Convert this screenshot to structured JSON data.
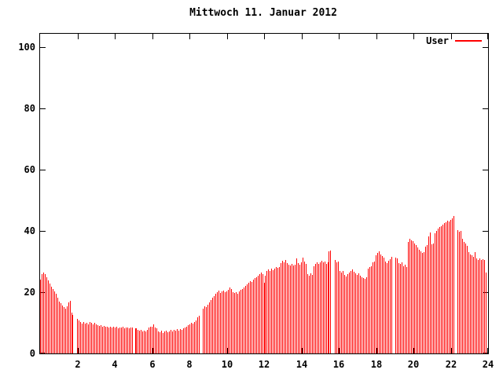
{
  "title": "Mittwoch 11. Januar 2012",
  "legend": {
    "label": "User",
    "color": "#ff0000"
  },
  "colors": {
    "background": "#ffffff",
    "bars": "#ff0000",
    "axis": "#000000",
    "text": "#000000"
  },
  "chart_data": {
    "type": "bar",
    "title": "Mittwoch 11. Januar 2012",
    "series_name": "User",
    "x_unit": "hour of day",
    "x_range": [
      0,
      24
    ],
    "y_range": [
      0,
      104.3
    ],
    "x_ticks": [
      2,
      4,
      6,
      8,
      10,
      12,
      14,
      16,
      18,
      20,
      22,
      24
    ],
    "y_ticks": [
      0,
      20,
      40,
      60,
      80,
      100
    ],
    "grid": false,
    "legend_position": "top-right-inside",
    "bar_style": "impulses",
    "sample_interval_minutes": 5,
    "gaps_note": "zero values = missing samples (white gaps)",
    "values": [
      24.0,
      25.8,
      26.4,
      25.9,
      24.9,
      23.8,
      22.8,
      21.9,
      21.1,
      20.3,
      19.4,
      18.3,
      17.0,
      16.3,
      15.6,
      15.0,
      14.6,
      15.4,
      16.6,
      17.1,
      13.2,
      12.6,
      0,
      0,
      11.2,
      10.7,
      10.3,
      9.8,
      10.2,
      9.7,
      10.0,
      9.6,
      10.3,
      10.0,
      9.6,
      9.9,
      9.5,
      9.2,
      8.9,
      9.1,
      8.7,
      8.9,
      8.6,
      8.8,
      8.5,
      8.7,
      8.5,
      8.6,
      8.4,
      8.6,
      8.3,
      8.5,
      8.4,
      8.6,
      8.3,
      8.5,
      8.4,
      8.3,
      8.5,
      8.4,
      0,
      8.3,
      8.1,
      7.7,
      7.4,
      7.6,
      7.2,
      7.5,
      7.3,
      7.8,
      8.4,
      8.7,
      8.8,
      9.4,
      8.5,
      8.1,
      7.2,
      6.9,
      7.4,
      6.6,
      7.1,
      7.5,
      6.8,
      7.3,
      7.6,
      7.2,
      7.7,
      7.4,
      7.9,
      7.5,
      8.0,
      7.7,
      8.2,
      8.5,
      8.8,
      9.2,
      9.6,
      10.0,
      9.7,
      10.2,
      10.7,
      11.9,
      12.3,
      0,
      0,
      14.7,
      15.4,
      15.1,
      15.9,
      16.6,
      17.4,
      18.1,
      18.7,
      19.4,
      19.9,
      20.4,
      19.7,
      20.2,
      20.6,
      20.0,
      20.3,
      20.7,
      21.4,
      21.0,
      20.1,
      19.7,
      20.0,
      19.6,
      20.2,
      20.7,
      21.1,
      21.5,
      22.0,
      22.5,
      23.1,
      23.6,
      23.4,
      24.0,
      24.5,
      24.9,
      25.4,
      25.9,
      26.3,
      26.0,
      23.0,
      25.4,
      26.8,
      27.3,
      26.9,
      27.6,
      27.2,
      27.8,
      28.2,
      27.9,
      28.3,
      29.5,
      30.3,
      29.8,
      30.4,
      29.5,
      29.0,
      28.7,
      29.2,
      28.8,
      29.0,
      31.0,
      29.4,
      28.9,
      29.6,
      31.3,
      29.9,
      29.1,
      25.9,
      25.4,
      26.1,
      25.6,
      28.5,
      29.2,
      29.7,
      29.3,
      29.8,
      30.3,
      29.6,
      30.0,
      29.2,
      29.6,
      33.2,
      33.6,
      0,
      0,
      30.4,
      29.8,
      30.1,
      27.0,
      26.3,
      26.8,
      25.7,
      25.2,
      25.8,
      26.4,
      26.9,
      27.4,
      26.6,
      26.1,
      25.6,
      26.2,
      25.3,
      24.9,
      24.6,
      24.3,
      24.8,
      27.7,
      28.2,
      28.4,
      29.6,
      30.0,
      32.1,
      32.9,
      33.2,
      32.4,
      31.8,
      31.2,
      30.0,
      29.5,
      30.2,
      30.8,
      31.5,
      0,
      0,
      31.3,
      31.0,
      29.5,
      29.1,
      29.6,
      28.5,
      28.9,
      28.2,
      36.4,
      37.3,
      37.0,
      36.6,
      35.9,
      35.3,
      34.6,
      33.9,
      33.4,
      32.8,
      33.0,
      34.8,
      35.3,
      38.2,
      39.4,
      35.6,
      36.0,
      39.3,
      40.0,
      40.8,
      41.2,
      41.6,
      42.0,
      42.5,
      42.9,
      43.2,
      43.0,
      43.6,
      44.1,
      44.8,
      0,
      0,
      40.3,
      39.7,
      40.1,
      37.3,
      36.4,
      35.8,
      35.2,
      33.0,
      32.4,
      32.0,
      31.5,
      33.0,
      31.0,
      30.6,
      30.9,
      30.4,
      30.8,
      30.5,
      26.3
    ]
  }
}
